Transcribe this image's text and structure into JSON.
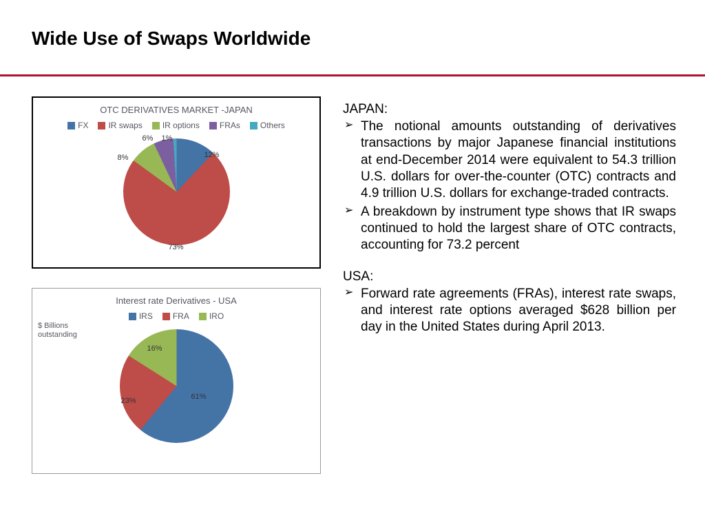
{
  "title": "Wide Use of Swaps Worldwide",
  "divider_color": "#b01030",
  "chart_japan": {
    "type": "pie",
    "title": "OTC DERIVATIVES MARKET -JAPAN",
    "legend": [
      {
        "label": "FX",
        "color": "#4473a6"
      },
      {
        "label": "IR swaps",
        "color": "#be4c48"
      },
      {
        "label": "IR options",
        "color": "#98b856"
      },
      {
        "label": "FRAs",
        "color": "#7c5fa1"
      },
      {
        "label": "Others",
        "color": "#48a8bf"
      }
    ],
    "slices": [
      {
        "label": "12%",
        "value": 12,
        "color": "#4473a6"
      },
      {
        "label": "73%",
        "value": 73,
        "color": "#be4c48"
      },
      {
        "label": "8%",
        "value": 8,
        "color": "#98b856"
      },
      {
        "label": "6%",
        "value": 6,
        "color": "#7c5fa1"
      },
      {
        "label": "1%",
        "value": 1,
        "color": "#48a8bf"
      }
    ],
    "pie_size": 155,
    "background_color": "#ffffff"
  },
  "chart_usa": {
    "type": "pie",
    "title": "Interest rate Derivatives - USA",
    "axis_label": "$ Billions outstanding",
    "legend": [
      {
        "label": "IRS",
        "color": "#4473a6"
      },
      {
        "label": "FRA",
        "color": "#be4c48"
      },
      {
        "label": "IRO",
        "color": "#98b856"
      }
    ],
    "slices": [
      {
        "label": "61%",
        "value": 61,
        "color": "#4473a6"
      },
      {
        "label": "23%",
        "value": 23,
        "color": "#be4c48"
      },
      {
        "label": "16%",
        "value": 16,
        "color": "#98b856"
      }
    ],
    "pie_size": 165,
    "background_color": "#ffffff"
  },
  "text": {
    "japan_head": "JAPAN:",
    "japan_bullets": [
      "The notional amounts outstanding of derivatives transactions by major Japanese financial institutions at end-December 2014 were equivalent to 54.3 trillion U.S. dollars for over-the-counter (OTC) contracts and 4.9 trillion U.S. dollars for exchange-traded contracts.",
      "A breakdown by instrument type shows that IR swaps continued to hold the largest share of OTC contracts, accounting for 73.2 percent"
    ],
    "usa_head": "USA:",
    "usa_bullets": [
      "Forward rate agreements (FRAs), interest rate swaps, and interest rate options averaged $628 billion per day in the United States during April 2013."
    ]
  }
}
